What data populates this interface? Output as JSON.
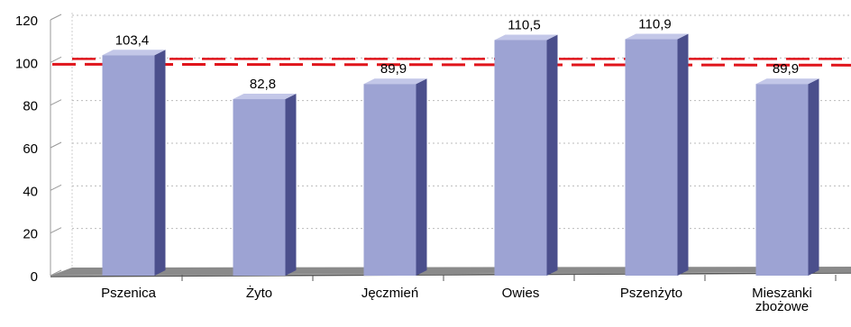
{
  "chart_data": {
    "type": "bar",
    "categories": [
      [
        "Pszenica"
      ],
      [
        "Żyto"
      ],
      [
        "Jęczmień"
      ],
      [
        "Owies"
      ],
      [
        "Pszenżyto"
      ],
      [
        "Mieszanki",
        "zbożowe"
      ]
    ],
    "values": [
      103.4,
      82.8,
      89.9,
      110.5,
      110.9,
      89.9
    ],
    "value_labels": [
      "103,4",
      "82,8",
      "89,9",
      "110,5",
      "110,9",
      "89,9"
    ],
    "ylim": [
      0,
      120
    ],
    "yticks": [
      0,
      20,
      40,
      60,
      80,
      100,
      120
    ],
    "reference_line": {
      "value": 100,
      "style": "dashed"
    },
    "grid": "horizontal dotted",
    "colors": {
      "bar_front": "#9da3d3",
      "bar_side": "#4b4f8c",
      "bar_top": "#c3c7e8",
      "reference_line": "#e0141b",
      "floor": "#8a8a8a",
      "grid": "#bbbbbb",
      "text": "#000000"
    }
  }
}
